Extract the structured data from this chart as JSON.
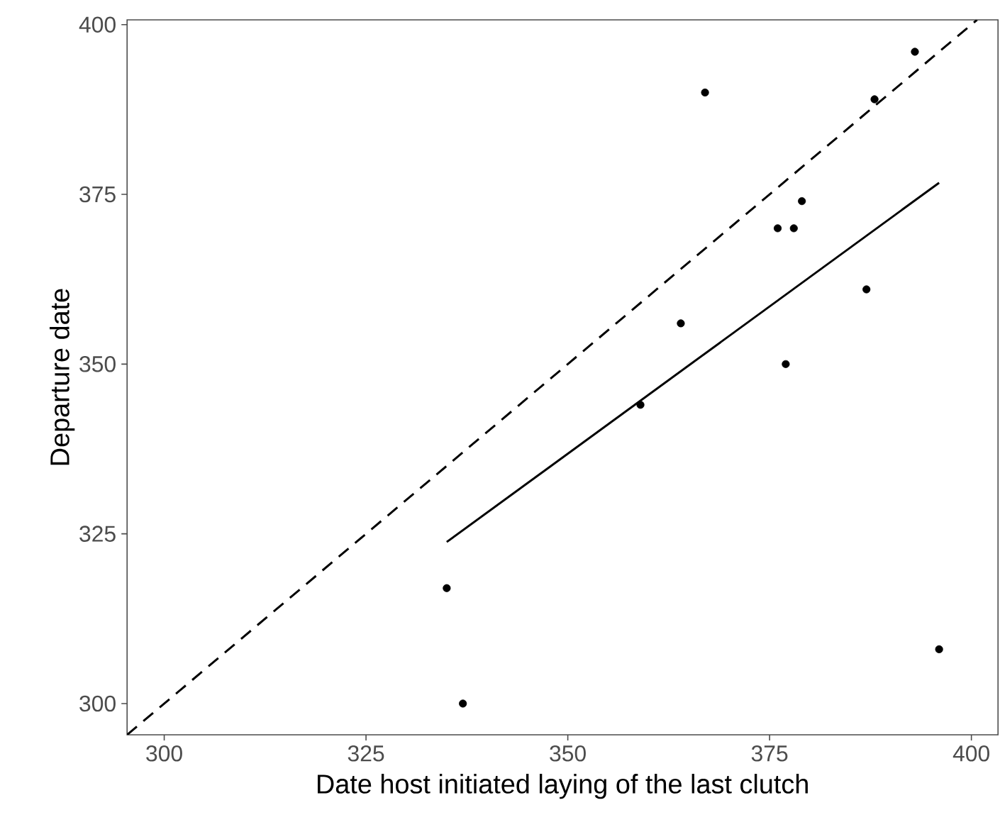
{
  "chart_data": {
    "type": "scatter",
    "xlabel": "Date host initiated laying of the last clutch",
    "ylabel": "Departure date",
    "xlim": [
      295.4,
      403.3
    ],
    "ylim": [
      295.4,
      400.7
    ],
    "xticks": [
      300,
      325,
      350,
      375,
      400
    ],
    "yticks": [
      300,
      325,
      350,
      375,
      400
    ],
    "grid": false,
    "series": [
      {
        "marker": "circle",
        "color": "#000000",
        "x": [
          367,
          393,
          388,
          379,
          376,
          378,
          387,
          364,
          377,
          359,
          335,
          337,
          396
        ],
        "values": [
          390,
          396,
          389,
          374,
          370,
          370,
          361,
          356,
          350,
          344,
          317,
          300,
          308
        ]
      },
      {
        "type": "line",
        "line_style": "solid",
        "color": "#000000",
        "x": [
          335,
          396
        ],
        "values": [
          323.8,
          376.7
        ]
      },
      {
        "type": "line",
        "line_style": "dashed",
        "color": "#000000",
        "x": [
          295.4,
          400.7
        ],
        "values": [
          295.4,
          400.7
        ]
      }
    ]
  }
}
